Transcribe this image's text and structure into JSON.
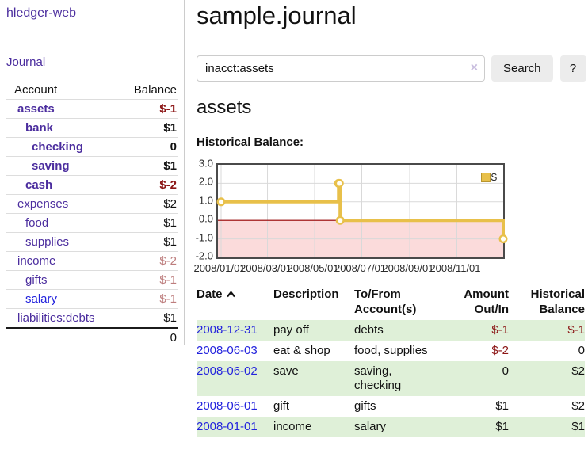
{
  "app": {
    "brand": "hledger-web"
  },
  "sidebar": {
    "nav": {
      "journal": "Journal"
    },
    "columns": {
      "account": "Account",
      "balance": "Balance"
    },
    "accounts": [
      {
        "name": "assets",
        "balance": "$-1"
      },
      {
        "name": "bank",
        "balance": "$1"
      },
      {
        "name": "checking",
        "balance": "0"
      },
      {
        "name": "saving",
        "balance": "$1"
      },
      {
        "name": "cash",
        "balance": "$-2"
      },
      {
        "name": "expenses",
        "balance": "$2"
      },
      {
        "name": "food",
        "balance": "$1"
      },
      {
        "name": "supplies",
        "balance": "$1"
      },
      {
        "name": "income",
        "balance": "$-2"
      },
      {
        "name": "gifts",
        "balance": "$-1"
      },
      {
        "name": "salary",
        "balance": "$-1"
      },
      {
        "name": "liabilities:debts",
        "balance": "$1"
      }
    ],
    "total": "0"
  },
  "main": {
    "title": "sample.journal",
    "search": {
      "value": "inacct:assets",
      "clear_icon": "×",
      "search_label": "Search",
      "help_label": "?"
    },
    "account_heading": "assets",
    "register": {
      "headers": {
        "date": "Date",
        "description": "Description",
        "tofrom": "To/From Account(s)",
        "amount": "Amount Out/In",
        "balance": "Historical Balance"
      },
      "rows": [
        {
          "date": "2008-12-31",
          "description": "pay off",
          "tofrom": "debts",
          "amount": "$-1",
          "balance": "$-1"
        },
        {
          "date": "2008-06-03",
          "description": "eat & shop",
          "tofrom": "food, supplies",
          "amount": "$-2",
          "balance": "0"
        },
        {
          "date": "2008-06-02",
          "description": "save",
          "tofrom": "saving, checking",
          "amount": "0",
          "balance": "$2"
        },
        {
          "date": "2008-06-01",
          "description": "gift",
          "tofrom": "gifts",
          "amount": "$1",
          "balance": "$2"
        },
        {
          "date": "2008-01-01",
          "description": "income",
          "tofrom": "salary",
          "amount": "$1",
          "balance": "$1"
        }
      ]
    }
  },
  "chart_data": {
    "type": "line",
    "subtype": "step",
    "title": "Historical Balance:",
    "series": [
      {
        "name": "$",
        "color": "#e8c04a",
        "points": [
          [
            "2008-01-01",
            1
          ],
          [
            "2008-06-01",
            2
          ],
          [
            "2008-06-02",
            2
          ],
          [
            "2008-06-03",
            0
          ],
          [
            "2008-12-31",
            -1
          ]
        ]
      }
    ],
    "x_range": [
      "2008-01-01",
      "2008-12-31"
    ],
    "x_ticks": [
      "2008/01/01",
      "2008/03/01",
      "2008/05/01",
      "2008/07/01",
      "2008/09/01",
      "2008/11/01"
    ],
    "y_ticks": [
      3,
      2,
      1,
      0,
      -1,
      -2
    ],
    "ylim": [
      -2,
      3
    ],
    "grid": true,
    "legend_position": "top-right",
    "grid_color": "#d9d9d9",
    "negative_fill": "#fbdbdb",
    "zero_line_color": "#990000"
  }
}
